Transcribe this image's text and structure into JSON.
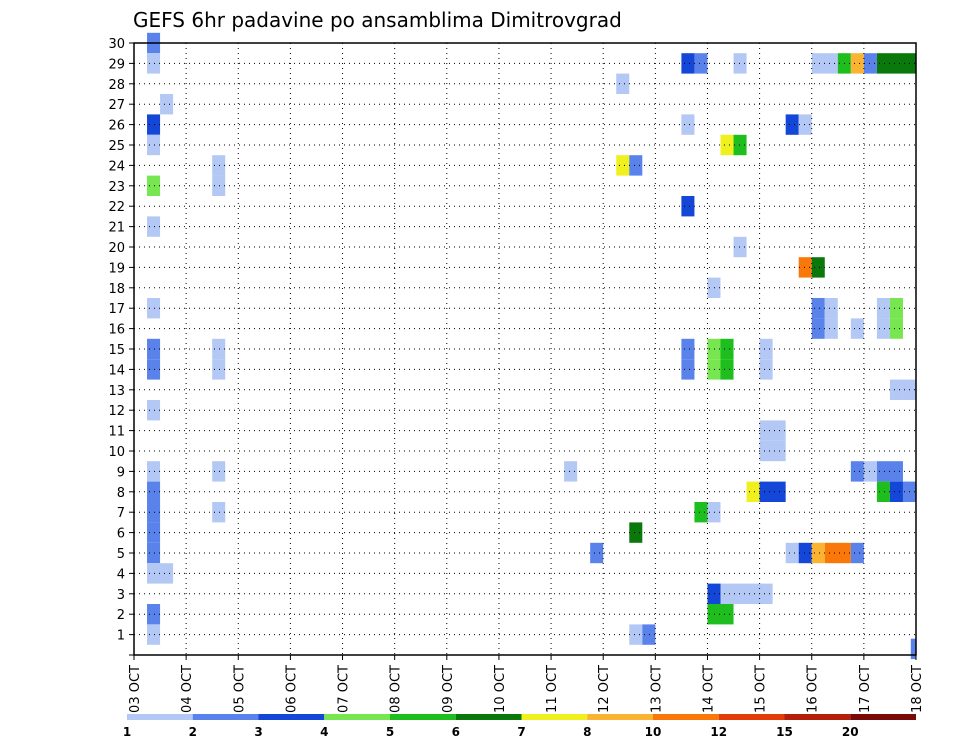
{
  "chart_data": {
    "type": "heatmap",
    "title": "GEFS 6hr padavine po ansamblima Dimitrovgrad",
    "x_tick_labels": [
      "03 OCT",
      "04 OCT",
      "05 OCT",
      "06 OCT",
      "07 OCT",
      "08 OCT",
      "09 OCT",
      "10 OCT",
      "11 OCT",
      "12 OCT",
      "13 OCT",
      "14 OCT",
      "15 OCT",
      "16 OCT",
      "17 OCT",
      "18 OCT"
    ],
    "y_tick_labels": [
      "1",
      "2",
      "3",
      "4",
      "5",
      "6",
      "7",
      "8",
      "9",
      "10",
      "11",
      "12",
      "13",
      "14",
      "15",
      "16",
      "17",
      "18",
      "19",
      "20",
      "21",
      "22",
      "23",
      "24",
      "25",
      "26",
      "27",
      "28",
      "29",
      "30"
    ],
    "xlim_days": [
      0,
      15
    ],
    "ylim_members": [
      0,
      30
    ],
    "grid": true,
    "colorbar": {
      "labels": [
        "1",
        "2",
        "3",
        "4",
        "5",
        "6",
        "7",
        "8",
        "10",
        "12",
        "15",
        "20"
      ],
      "colors": [
        "#b4c8f5",
        "#5a82eb",
        "#1446d7",
        "#78e650",
        "#1ebe1e",
        "#0a780a",
        "#f0f01e",
        "#fab432",
        "#fa780a",
        "#e13c0a",
        "#b41e0a",
        "#780a0a"
      ]
    },
    "cells": [
      [
        30,
        0.25,
        0.5,
        "#5a82eb"
      ],
      [
        29,
        0.25,
        0.5,
        "#b4c8f5"
      ],
      [
        27,
        0.5,
        0.75,
        "#b4c8f5"
      ],
      [
        26,
        0.25,
        0.5,
        "#1446d7"
      ],
      [
        25,
        0.25,
        0.5,
        "#b4c8f5"
      ],
      [
        24,
        1.5,
        1.75,
        "#b4c8f5"
      ],
      [
        23,
        0.25,
        0.5,
        "#78e650"
      ],
      [
        23,
        1.5,
        1.75,
        "#b4c8f5"
      ],
      [
        21,
        0.25,
        0.5,
        "#b4c8f5"
      ],
      [
        17,
        0.25,
        0.5,
        "#b4c8f5"
      ],
      [
        15,
        0.25,
        0.5,
        "#5a82eb"
      ],
      [
        15,
        1.5,
        1.75,
        "#b4c8f5"
      ],
      [
        14,
        0.25,
        0.5,
        "#5a82eb"
      ],
      [
        14,
        1.5,
        1.75,
        "#b4c8f5"
      ],
      [
        12,
        0.25,
        0.5,
        "#b4c8f5"
      ],
      [
        9,
        0.25,
        0.5,
        "#b4c8f5"
      ],
      [
        9,
        1.5,
        1.75,
        "#b4c8f5"
      ],
      [
        8,
        0.25,
        0.5,
        "#5a82eb"
      ],
      [
        7,
        0.25,
        0.5,
        "#5a82eb"
      ],
      [
        7,
        1.5,
        1.75,
        "#b4c8f5"
      ],
      [
        6,
        0.25,
        0.5,
        "#5a82eb"
      ],
      [
        5,
        0.25,
        0.5,
        "#5a82eb"
      ],
      [
        4,
        0.25,
        0.75,
        "#b4c8f5"
      ],
      [
        2,
        0.25,
        0.5,
        "#5a82eb"
      ],
      [
        1,
        0.25,
        0.5,
        "#b4c8f5"
      ],
      [
        29,
        10.5,
        10.75,
        "#1446d7"
      ],
      [
        29,
        10.75,
        11,
        "#5a82eb"
      ],
      [
        29,
        11.5,
        11.75,
        "#b4c8f5"
      ],
      [
        29,
        13,
        13.5,
        "#b4c8f5"
      ],
      [
        29,
        13.5,
        13.75,
        "#1ebe1e"
      ],
      [
        29,
        13.75,
        14,
        "#fab432"
      ],
      [
        29,
        14,
        14.25,
        "#5a82eb"
      ],
      [
        29,
        14.25,
        15,
        "#0a780a"
      ],
      [
        28,
        9.25,
        9.5,
        "#b4c8f5"
      ],
      [
        26,
        10.5,
        10.75,
        "#b4c8f5"
      ],
      [
        26,
        12.5,
        12.75,
        "#1446d7"
      ],
      [
        26,
        12.75,
        13,
        "#b4c8f5"
      ],
      [
        25,
        11.25,
        11.5,
        "#f0f01e"
      ],
      [
        25,
        11.5,
        11.75,
        "#1ebe1e"
      ],
      [
        24,
        9.25,
        9.5,
        "#f0f01e"
      ],
      [
        24,
        9.5,
        9.75,
        "#5a82eb"
      ],
      [
        22,
        10.5,
        10.75,
        "#1446d7"
      ],
      [
        20,
        11.5,
        11.75,
        "#b4c8f5"
      ],
      [
        19,
        12.75,
        13,
        "#fa780a"
      ],
      [
        19,
        13,
        13.25,
        "#0a780a"
      ],
      [
        18,
        11,
        11.25,
        "#b4c8f5"
      ],
      [
        17,
        13,
        13.25,
        "#5a82eb"
      ],
      [
        17,
        13.25,
        13.5,
        "#b4c8f5"
      ],
      [
        17,
        14.25,
        14.5,
        "#b4c8f5"
      ],
      [
        17,
        14.5,
        14.75,
        "#78e650"
      ],
      [
        16,
        13,
        13.25,
        "#5a82eb"
      ],
      [
        16,
        13.25,
        13.5,
        "#b4c8f5"
      ],
      [
        16,
        14.25,
        14.5,
        "#b4c8f5"
      ],
      [
        16,
        14.5,
        14.75,
        "#78e650"
      ],
      [
        16,
        13.75,
        14,
        "#b4c8f5"
      ],
      [
        15,
        10.5,
        10.75,
        "#5a82eb"
      ],
      [
        15,
        11,
        11.25,
        "#78e650"
      ],
      [
        15,
        11.25,
        11.5,
        "#1ebe1e"
      ],
      [
        15,
        12,
        12.25,
        "#b4c8f5"
      ],
      [
        14,
        10.5,
        10.75,
        "#5a82eb"
      ],
      [
        14,
        11,
        11.25,
        "#78e650"
      ],
      [
        14,
        11.25,
        11.5,
        "#1ebe1e"
      ],
      [
        14,
        12,
        12.25,
        "#b4c8f5"
      ],
      [
        13,
        14.5,
        14.75,
        "#b4c8f5"
      ],
      [
        13,
        14.75,
        15,
        "#b4c8f5"
      ],
      [
        11,
        12,
        12.5,
        "#b4c8f5"
      ],
      [
        10,
        12,
        12.5,
        "#b4c8f5"
      ],
      [
        9,
        8.25,
        8.5,
        "#b4c8f5"
      ],
      [
        9,
        13.75,
        14,
        "#5a82eb"
      ],
      [
        9,
        14,
        14.25,
        "#b4c8f5"
      ],
      [
        9,
        14.25,
        14.75,
        "#5a82eb"
      ],
      [
        8,
        11.75,
        12,
        "#f0f01e"
      ],
      [
        8,
        12,
        12.5,
        "#1446d7"
      ],
      [
        8,
        14.25,
        14.5,
        "#1ebe1e"
      ],
      [
        8,
        14.5,
        14.75,
        "#1446d7"
      ],
      [
        8,
        14.75,
        15,
        "#5a82eb"
      ],
      [
        7,
        10.75,
        11,
        "#1ebe1e"
      ],
      [
        7,
        11,
        11.25,
        "#b4c8f5"
      ],
      [
        6,
        9.5,
        9.75,
        "#0a780a"
      ],
      [
        5,
        8.75,
        9,
        "#5a82eb"
      ],
      [
        5,
        12.5,
        12.75,
        "#b4c8f5"
      ],
      [
        5,
        12.75,
        13,
        "#1446d7"
      ],
      [
        5,
        13,
        13.25,
        "#fab432"
      ],
      [
        5,
        13.25,
        13.75,
        "#fa780a"
      ],
      [
        5,
        13.75,
        14,
        "#5a82eb"
      ],
      [
        3,
        11,
        11.25,
        "#1446d7"
      ],
      [
        3,
        11.25,
        12.25,
        "#b4c8f5"
      ],
      [
        2,
        11,
        11.5,
        "#1ebe1e"
      ],
      [
        1,
        9.5,
        9.75,
        "#b4c8f5"
      ],
      [
        1,
        9.75,
        10,
        "#5a82eb"
      ],
      [
        0.3,
        14.9,
        15,
        "#5a82eb"
      ]
    ]
  }
}
